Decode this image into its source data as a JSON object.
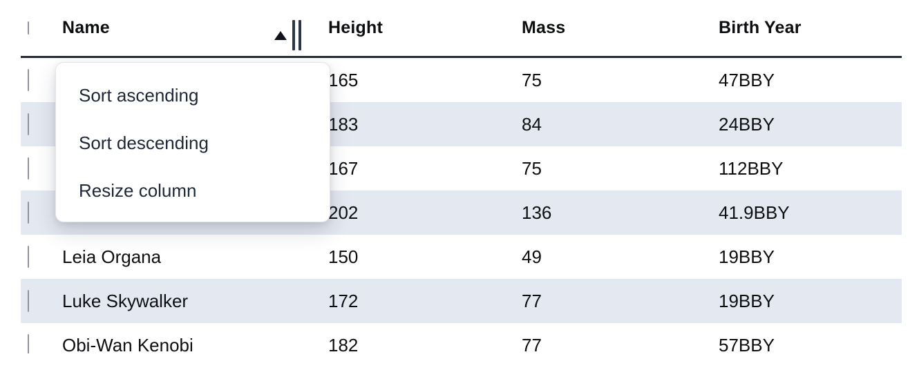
{
  "table": {
    "columns": [
      {
        "label": "Name"
      },
      {
        "label": "Height"
      },
      {
        "label": "Mass"
      },
      {
        "label": "Birth Year"
      }
    ],
    "sort": {
      "column": "Name",
      "direction": "ascending"
    },
    "rows": [
      {
        "name": "",
        "height": "165",
        "mass": "75",
        "birth_year": "47BBY",
        "checked": false
      },
      {
        "name": "",
        "height": "183",
        "mass": "84",
        "birth_year": "24BBY",
        "checked": false
      },
      {
        "name": "",
        "height": "167",
        "mass": "75",
        "birth_year": "112BBY",
        "checked": false
      },
      {
        "name": "",
        "height": "202",
        "mass": "136",
        "birth_year": "41.9BBY",
        "checked": false
      },
      {
        "name": "Leia Organa",
        "height": "150",
        "mass": "49",
        "birth_year": "19BBY",
        "checked": false
      },
      {
        "name": "Luke Skywalker",
        "height": "172",
        "mass": "77",
        "birth_year": "19BBY",
        "checked": false
      },
      {
        "name": "Obi-Wan Kenobi",
        "height": "182",
        "mass": "77",
        "birth_year": "57BBY",
        "checked": false
      }
    ],
    "select_all_checked": false
  },
  "context_menu": {
    "items": [
      {
        "label": "Sort ascending"
      },
      {
        "label": "Sort descending"
      },
      {
        "label": "Resize column"
      }
    ]
  },
  "icons": {
    "sort_indicator": "triangle-up",
    "column_resize_handle": "double-vertical-bars",
    "row_selector": "checkbox"
  },
  "colors": {
    "row_stripe": "#e4e8f0",
    "header_border": "#1f2a3c",
    "text": "#0d0e10",
    "menu_text": "#1e2736",
    "resize_bars": "#2b3648",
    "checkbox_border": "#8f939b"
  }
}
